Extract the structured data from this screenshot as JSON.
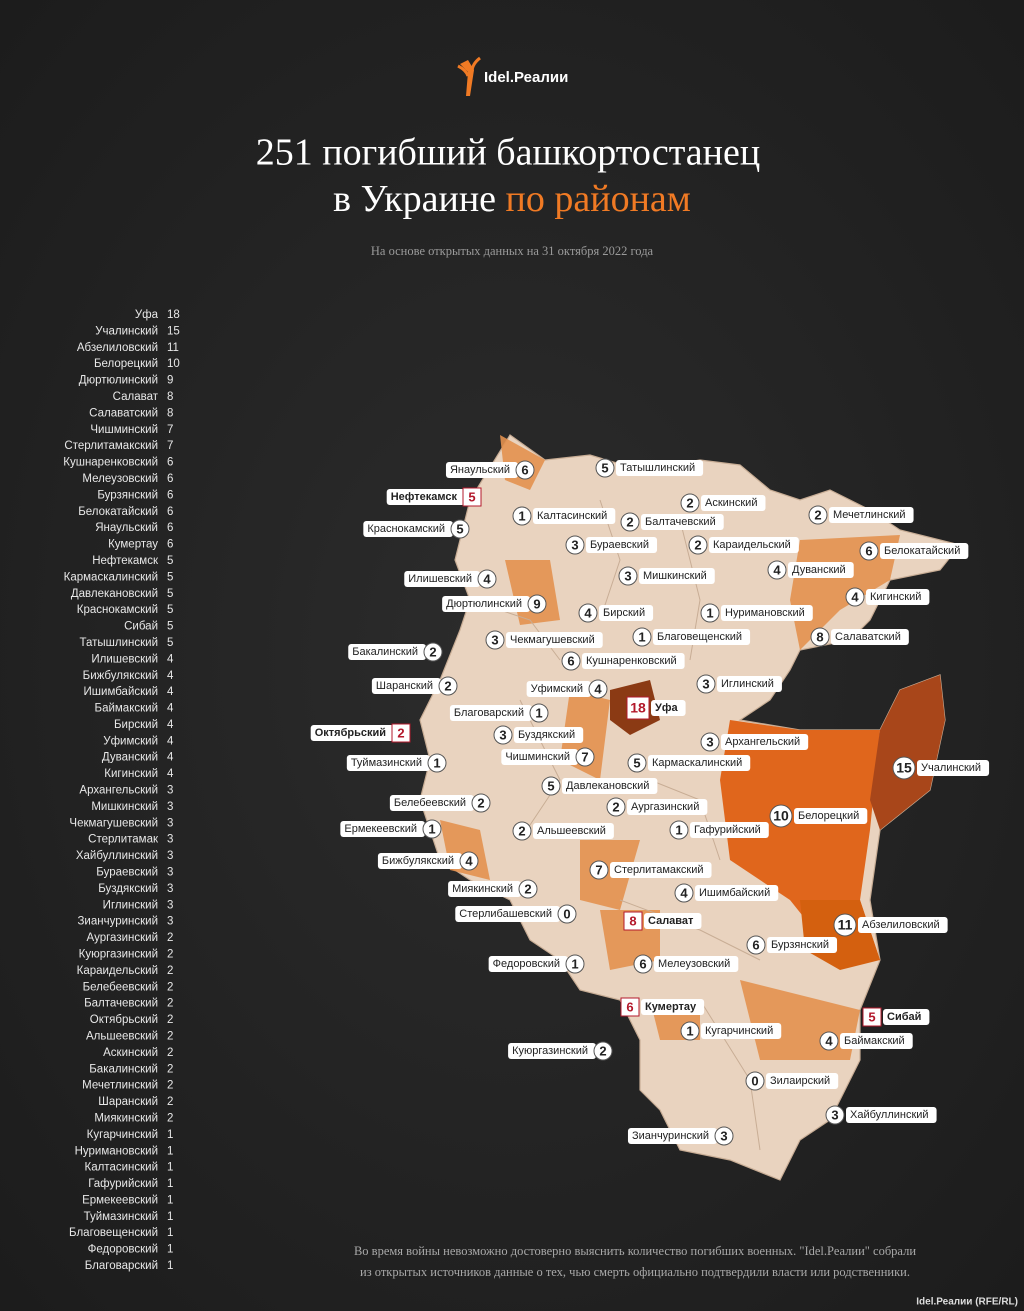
{
  "logo": "Idel.Реалии",
  "title_lines": [
    "251 погибший башкортостанец",
    "в Украине",
    "по районам"
  ],
  "subtitle": "На основе открытых данных на 31 октября 2022 года",
  "footnote": [
    "Во время войны невозможно достоверно выяснить количество погибших военных. \"Idel.Реалии\" собрали",
    "из открытых источников данные о тех, чью смерть официально подтвердили власти или родственники."
  ],
  "credit": "Idel.Реалии (RFE/RL)",
  "chart_data": [
    {
      "type": "hbar",
      "color": "#f3e6a6",
      "categories": [
        "Уфа",
        "Учалинский",
        "Абзелиловский",
        "Белорецкий",
        "Дюртюлинский",
        "Салават",
        "Салаватский",
        "Чишминский",
        "Стерлитамакский",
        "Кушнаренковский",
        "Мелеузовский",
        "Бурзянский",
        "Белокатайский",
        "Янаульский",
        "Кумертау",
        "Нефтекамск",
        "Кармаскалинский",
        "Давлекановский",
        "Краснокамский",
        "Сибай",
        "Татышлинский",
        "Илишевский",
        "Бижбулякский",
        "Ишимбайский",
        "Баймакский",
        "Бирский",
        "Уфимский",
        "Дуванский",
        "Кигинский",
        "Архангельский",
        "Мишкинский",
        "Чекмагушевский",
        "Стерлитамак",
        "Хайбуллинский",
        "Бураевский",
        "Буздякский",
        "Иглинский",
        "Зианчуринский",
        "Аургазинский",
        "Куюргазинский",
        "Караидельский",
        "Белебеевский",
        "Балтачевский",
        "Октябрьский",
        "Альшеевский",
        "Аскинский",
        "Бакалинский",
        "Мечетлинский",
        "Шаранский",
        "Миякинский",
        "Кугарчинский",
        "Нуримановский",
        "Калтасинский",
        "Гафурийский",
        "Ермекеевский",
        "Туймазинский",
        "Благовещенский",
        "Федоровский",
        "Благоварский"
      ],
      "values": [
        18,
        15,
        11,
        10,
        9,
        8,
        8,
        7,
        7,
        6,
        6,
        6,
        6,
        6,
        6,
        5,
        5,
        5,
        5,
        5,
        5,
        4,
        4,
        4,
        4,
        4,
        4,
        4,
        4,
        3,
        3,
        3,
        3,
        3,
        3,
        3,
        3,
        3,
        2,
        2,
        2,
        2,
        2,
        2,
        2,
        2,
        2,
        2,
        2,
        2,
        1,
        1,
        1,
        1,
        1,
        1,
        1,
        1,
        1
      ]
    },
    {
      "type": "map",
      "labels": [
        {
          "name": "Янаульский",
          "value": 6
        },
        {
          "name": "Татышлинский",
          "value": 5
        },
        {
          "name": "Нефтекамск",
          "value": 5,
          "city": true
        },
        {
          "name": "Аскинский",
          "value": 2
        },
        {
          "name": "Калтасинский",
          "value": 1
        },
        {
          "name": "Балтачевский",
          "value": 2
        },
        {
          "name": "Мечетлинский",
          "value": 2
        },
        {
          "name": "Краснокамский",
          "value": 5
        },
        {
          "name": "Бураевский",
          "value": 3
        },
        {
          "name": "Караидельский",
          "value": 2
        },
        {
          "name": "Белокатайский",
          "value": 6
        },
        {
          "name": "Мишкинский",
          "value": 3
        },
        {
          "name": "Дуванский",
          "value": 4
        },
        {
          "name": "Илишевский",
          "value": 4
        },
        {
          "name": "Дюртюлинский",
          "value": 9
        },
        {
          "name": "Бирский",
          "value": 4
        },
        {
          "name": "Нуримановский",
          "value": 1
        },
        {
          "name": "Кигинский",
          "value": 4
        },
        {
          "name": "Чекмагушевский",
          "value": 3
        },
        {
          "name": "Благовещенский",
          "value": 1
        },
        {
          "name": "Салаватский",
          "value": 8
        },
        {
          "name": "Бакалинский",
          "value": 2
        },
        {
          "name": "Кушнаренковский",
          "value": 6
        },
        {
          "name": "Шаранский",
          "value": 2
        },
        {
          "name": "Уфимский",
          "value": 4
        },
        {
          "name": "Иглинский",
          "value": 3
        },
        {
          "name": "Уфа",
          "value": 18,
          "city": true
        },
        {
          "name": "Благоварский",
          "value": 1
        },
        {
          "name": "Октябрьский",
          "value": 2,
          "city": true
        },
        {
          "name": "Буздякский",
          "value": 3
        },
        {
          "name": "Архангельский",
          "value": 3
        },
        {
          "name": "Туймазинский",
          "value": 1
        },
        {
          "name": "Чишминский",
          "value": 7
        },
        {
          "name": "Кармаскалинский",
          "value": 5
        },
        {
          "name": "Учалинский",
          "value": 15
        },
        {
          "name": "Давлекановский",
          "value": 5
        },
        {
          "name": "Белебеевский",
          "value": 2
        },
        {
          "name": "Аургазинский",
          "value": 2
        },
        {
          "name": "Белорецкий",
          "value": 10
        },
        {
          "name": "Ермекеевский",
          "value": 1
        },
        {
          "name": "Альшеевский",
          "value": 2
        },
        {
          "name": "Гафурийский",
          "value": 1
        },
        {
          "name": "Бижбулякский",
          "value": 4
        },
        {
          "name": "Стерлитамакский",
          "value": 7
        },
        {
          "name": "Миякинский",
          "value": 2
        },
        {
          "name": "Ишимбайский",
          "value": 4
        },
        {
          "name": "Стерлибашевский",
          "value": 0
        },
        {
          "name": "Салават",
          "value": 8,
          "city": true
        },
        {
          "name": "Абзелиловский",
          "value": 11
        },
        {
          "name": "Бурзянский",
          "value": 6
        },
        {
          "name": "Федоровский",
          "value": 1
        },
        {
          "name": "Мелеузовский",
          "value": 6
        },
        {
          "name": "Кумертау",
          "value": 6,
          "city": true
        },
        {
          "name": "Сибай",
          "value": 5,
          "city": true
        },
        {
          "name": "Кугарчинский",
          "value": 1
        },
        {
          "name": "Баймакский",
          "value": 4
        },
        {
          "name": "Куюргазинский",
          "value": 2
        },
        {
          "name": "Зилаирский",
          "value": 0
        },
        {
          "name": "Хайбуллинский",
          "value": 3
        },
        {
          "name": "Зианчуринский",
          "value": 3
        }
      ]
    }
  ]
}
